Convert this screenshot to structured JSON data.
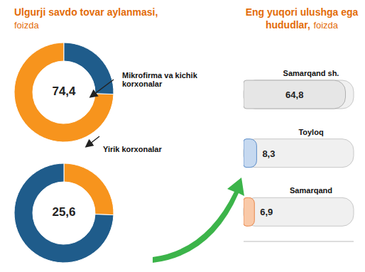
{
  "chart_data": [
    {
      "type": "pie",
      "title": "Ulgurji savdo tovar aylanmasi,",
      "subtitle": "foizda",
      "annotation": "Mikrofirma va kichik korxonalar",
      "center_text": "74,4",
      "values": [
        74.4,
        25.6
      ],
      "colors": [
        "#f7941d",
        "#1f5c8b"
      ]
    },
    {
      "type": "pie",
      "annotation": "Yirik korxonalar",
      "center_text": "25,6",
      "values": [
        25.6,
        74.4
      ],
      "colors": [
        "#f7941d",
        "#1f5c8b"
      ]
    },
    {
      "type": "bar",
      "title": "Eng yuqori ulushga ega hududlar,",
      "subtitle": "foizda",
      "orientation": "horizontal",
      "categories": [
        "Samarqand sh.",
        "Toyloq",
        "Samarqand"
      ],
      "values": [
        64.8,
        8.3,
        6.9
      ],
      "value_labels": [
        "64,8",
        "8,3",
        "6,9"
      ],
      "colors": [
        "#e6e6e6",
        "#c6d9f0",
        "#f9c9a8"
      ],
      "xlim": [
        0,
        70
      ],
      "data_labels": true,
      "tick_labels": false
    }
  ]
}
